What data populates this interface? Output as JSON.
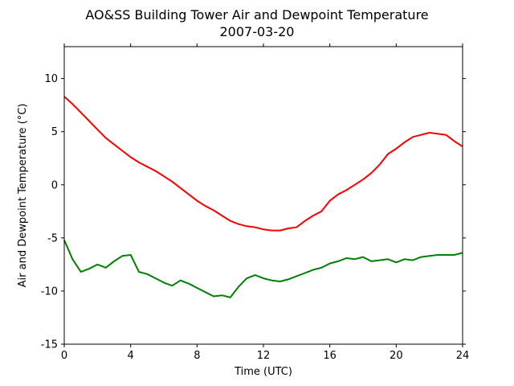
{
  "chart_data": {
    "type": "line",
    "title": "AO&SS Building Tower Air and Dewpoint Temperature",
    "subtitle": "2007-03-20",
    "xlabel": "Time (UTC)",
    "ylabel": "Air and Dewpoint Temperature (°C)",
    "xlim": [
      0,
      24
    ],
    "ylim": [
      -15,
      13
    ],
    "xticks": [
      0,
      4,
      8,
      12,
      16,
      20,
      24
    ],
    "yticks": [
      -15,
      -10,
      -5,
      0,
      5,
      10
    ],
    "grid": false,
    "legend": "none",
    "series": [
      {
        "color": "#ff0000",
        "x": [
          0,
          0.5,
          1,
          1.5,
          2,
          2.5,
          3,
          3.5,
          4,
          4.5,
          5,
          5.5,
          6,
          6.5,
          7,
          7.5,
          8,
          8.5,
          9,
          9.5,
          10,
          10.5,
          11,
          11.5,
          12,
          12.5,
          13,
          13.5,
          14,
          14.5,
          15,
          15.5,
          16,
          16.5,
          17,
          17.5,
          18,
          18.5,
          19,
          19.5,
          20,
          20.5,
          21,
          21.5,
          22,
          22.5,
          23,
          23.5,
          24
        ],
        "y": [
          8.3,
          7.6,
          6.8,
          6.0,
          5.2,
          4.4,
          3.8,
          3.2,
          2.6,
          2.1,
          1.7,
          1.3,
          0.8,
          0.3,
          -0.3,
          -0.9,
          -1.5,
          -2.0,
          -2.4,
          -2.9,
          -3.4,
          -3.7,
          -3.9,
          -4.0,
          -4.2,
          -4.3,
          -4.3,
          -4.1,
          -4.0,
          -3.4,
          -2.9,
          -2.5,
          -1.5,
          -0.9,
          -0.5,
          0.0,
          0.5,
          1.1,
          1.9,
          2.9,
          3.4,
          4.0,
          4.5,
          4.7,
          4.9,
          4.8,
          4.7,
          4.1,
          3.6
        ]
      },
      {
        "color": "#008000",
        "x": [
          0,
          0.5,
          1,
          1.5,
          2,
          2.5,
          3,
          3.5,
          4,
          4.5,
          5,
          5.5,
          6,
          6.5,
          7,
          7.5,
          8,
          8.5,
          9,
          9.5,
          10,
          10.5,
          11,
          11.5,
          12,
          12.5,
          13,
          13.5,
          14,
          14.5,
          15,
          15.5,
          16,
          16.5,
          17,
          17.5,
          18,
          18.5,
          19,
          19.5,
          20,
          20.5,
          21,
          21.5,
          22,
          22.5,
          23,
          23.5,
          24
        ],
        "y": [
          -5.2,
          -7.0,
          -8.2,
          -7.9,
          -7.5,
          -7.8,
          -7.2,
          -6.7,
          -6.6,
          -8.2,
          -8.4,
          -8.8,
          -9.2,
          -9.5,
          -9.0,
          -9.3,
          -9.7,
          -10.1,
          -10.5,
          -10.4,
          -10.6,
          -9.6,
          -8.8,
          -8.5,
          -8.8,
          -9.0,
          -9.1,
          -8.9,
          -8.6,
          -8.3,
          -8.0,
          -7.8,
          -7.4,
          -7.2,
          -6.9,
          -7.0,
          -6.8,
          -7.2,
          -7.1,
          -7.0,
          -7.3,
          -7.0,
          -7.1,
          -6.8,
          -6.7,
          -6.6,
          -6.6,
          -6.6,
          -6.4
        ]
      }
    ]
  }
}
